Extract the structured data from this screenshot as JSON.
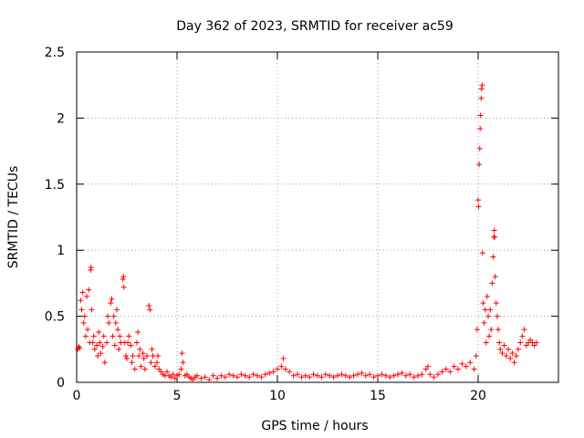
{
  "chart_data": {
    "type": "scatter",
    "title": "Day 362 of 2023, SRMTID for receiver ac59",
    "xlabel": "GPS time / hours",
    "ylabel": "SRMTID / TECUs",
    "xlim": [
      0,
      24
    ],
    "ylim": [
      0,
      2.5
    ],
    "xticks": [
      0,
      5,
      10,
      15,
      20
    ],
    "xtick_labels": [
      "0",
      "5",
      "10",
      "15",
      "20"
    ],
    "yticks": [
      0,
      0.5,
      1,
      1.5,
      2,
      2.5
    ],
    "ytick_labels": [
      "0",
      "0.5",
      "1",
      "1.5",
      "2",
      "2.5"
    ],
    "grid": true,
    "marker": "+",
    "color": "#ff0000",
    "series": [
      {
        "name": "SRMTID",
        "points": [
          [
            0.05,
            0.25
          ],
          [
            0.1,
            0.27
          ],
          [
            0.15,
            0.26
          ],
          [
            0.2,
            0.62
          ],
          [
            0.25,
            0.55
          ],
          [
            0.3,
            0.68
          ],
          [
            0.35,
            0.45
          ],
          [
            0.4,
            0.5
          ],
          [
            0.45,
            0.35
          ],
          [
            0.5,
            0.65
          ],
          [
            0.55,
            0.4
          ],
          [
            0.6,
            0.7
          ],
          [
            0.65,
            0.3
          ],
          [
            0.7,
            0.85
          ],
          [
            0.72,
            0.87
          ],
          [
            0.75,
            0.55
          ],
          [
            0.8,
            0.3
          ],
          [
            0.85,
            0.35
          ],
          [
            0.9,
            0.25
          ],
          [
            1.0,
            0.28
          ],
          [
            1.05,
            0.2
          ],
          [
            1.1,
            0.38
          ],
          [
            1.15,
            0.3
          ],
          [
            1.2,
            0.22
          ],
          [
            1.3,
            0.27
          ],
          [
            1.35,
            0.35
          ],
          [
            1.4,
            0.15
          ],
          [
            1.5,
            0.3
          ],
          [
            1.55,
            0.5
          ],
          [
            1.6,
            0.45
          ],
          [
            1.7,
            0.6
          ],
          [
            1.75,
            0.63
          ],
          [
            1.8,
            0.35
          ],
          [
            1.85,
            0.5
          ],
          [
            1.9,
            0.28
          ],
          [
            1.95,
            0.45
          ],
          [
            2.0,
            0.55
          ],
          [
            2.05,
            0.4
          ],
          [
            2.1,
            0.25
          ],
          [
            2.15,
            0.35
          ],
          [
            2.2,
            0.3
          ],
          [
            2.3,
            0.78
          ],
          [
            2.33,
            0.8
          ],
          [
            2.35,
            0.72
          ],
          [
            2.4,
            0.3
          ],
          [
            2.45,
            0.2
          ],
          [
            2.5,
            0.18
          ],
          [
            2.55,
            0.3
          ],
          [
            2.6,
            0.35
          ],
          [
            2.7,
            0.28
          ],
          [
            2.75,
            0.15
          ],
          [
            2.8,
            0.2
          ],
          [
            2.9,
            0.1
          ],
          [
            3.0,
            0.3
          ],
          [
            3.05,
            0.38
          ],
          [
            3.1,
            0.2
          ],
          [
            3.15,
            0.25
          ],
          [
            3.2,
            0.12
          ],
          [
            3.3,
            0.22
          ],
          [
            3.35,
            0.18
          ],
          [
            3.4,
            0.1
          ],
          [
            3.5,
            0.2
          ],
          [
            3.6,
            0.58
          ],
          [
            3.65,
            0.55
          ],
          [
            3.7,
            0.15
          ],
          [
            3.75,
            0.25
          ],
          [
            3.8,
            0.2
          ],
          [
            3.9,
            0.12
          ],
          [
            4.0,
            0.15
          ],
          [
            4.05,
            0.2
          ],
          [
            4.1,
            0.1
          ],
          [
            4.2,
            0.08
          ],
          [
            4.3,
            0.06
          ],
          [
            4.4,
            0.05
          ],
          [
            4.5,
            0.08
          ],
          [
            4.6,
            0.05
          ],
          [
            4.7,
            0.04
          ],
          [
            4.8,
            0.06
          ],
          [
            4.9,
            0.03
          ],
          [
            5.0,
            0.05
          ],
          [
            5.1,
            0.06
          ],
          [
            5.2,
            0.1
          ],
          [
            5.25,
            0.22
          ],
          [
            5.3,
            0.15
          ],
          [
            5.4,
            0.05
          ],
          [
            5.5,
            0.06
          ],
          [
            5.6,
            0.04
          ],
          [
            5.7,
            0.03
          ],
          [
            5.8,
            0.02
          ],
          [
            5.9,
            0.04
          ],
          [
            6.0,
            0.05
          ],
          [
            6.2,
            0.03
          ],
          [
            6.4,
            0.04
          ],
          [
            6.6,
            0.02
          ],
          [
            6.8,
            0.05
          ],
          [
            7.0,
            0.03
          ],
          [
            7.2,
            0.05
          ],
          [
            7.4,
            0.04
          ],
          [
            7.6,
            0.06
          ],
          [
            7.8,
            0.05
          ],
          [
            8.0,
            0.04
          ],
          [
            8.2,
            0.06
          ],
          [
            8.4,
            0.05
          ],
          [
            8.6,
            0.04
          ],
          [
            8.8,
            0.06
          ],
          [
            9.0,
            0.05
          ],
          [
            9.2,
            0.04
          ],
          [
            9.4,
            0.06
          ],
          [
            9.6,
            0.07
          ],
          [
            9.8,
            0.08
          ],
          [
            10.0,
            0.1
          ],
          [
            10.2,
            0.12
          ],
          [
            10.3,
            0.18
          ],
          [
            10.4,
            0.1
          ],
          [
            10.6,
            0.08
          ],
          [
            10.8,
            0.05
          ],
          [
            11.0,
            0.06
          ],
          [
            11.2,
            0.04
          ],
          [
            11.4,
            0.05
          ],
          [
            11.6,
            0.04
          ],
          [
            11.8,
            0.06
          ],
          [
            12.0,
            0.05
          ],
          [
            12.2,
            0.04
          ],
          [
            12.4,
            0.06
          ],
          [
            12.6,
            0.05
          ],
          [
            12.8,
            0.04
          ],
          [
            13.0,
            0.05
          ],
          [
            13.2,
            0.06
          ],
          [
            13.4,
            0.05
          ],
          [
            13.6,
            0.04
          ],
          [
            13.8,
            0.05
          ],
          [
            14.0,
            0.06
          ],
          [
            14.2,
            0.07
          ],
          [
            14.4,
            0.05
          ],
          [
            14.6,
            0.06
          ],
          [
            14.8,
            0.04
          ],
          [
            15.0,
            0.05
          ],
          [
            15.2,
            0.06
          ],
          [
            15.4,
            0.05
          ],
          [
            15.6,
            0.04
          ],
          [
            15.8,
            0.05
          ],
          [
            16.0,
            0.06
          ],
          [
            16.2,
            0.07
          ],
          [
            16.4,
            0.05
          ],
          [
            16.6,
            0.06
          ],
          [
            16.8,
            0.04
          ],
          [
            17.0,
            0.05
          ],
          [
            17.2,
            0.06
          ],
          [
            17.4,
            0.1
          ],
          [
            17.5,
            0.12
          ],
          [
            17.6,
            0.06
          ],
          [
            17.8,
            0.04
          ],
          [
            18.0,
            0.06
          ],
          [
            18.2,
            0.08
          ],
          [
            18.4,
            0.1
          ],
          [
            18.6,
            0.08
          ],
          [
            18.8,
            0.12
          ],
          [
            19.0,
            0.1
          ],
          [
            19.2,
            0.14
          ],
          [
            19.4,
            0.12
          ],
          [
            19.6,
            0.15
          ],
          [
            19.8,
            0.1
          ],
          [
            19.9,
            0.2
          ],
          [
            19.95,
            0.4
          ],
          [
            20.0,
            1.38
          ],
          [
            20.02,
            1.33
          ],
          [
            20.05,
            1.65
          ],
          [
            20.08,
            1.77
          ],
          [
            20.1,
            1.92
          ],
          [
            20.12,
            2.02
          ],
          [
            20.15,
            2.15
          ],
          [
            20.17,
            2.22
          ],
          [
            20.2,
            2.25
          ],
          [
            20.22,
            0.98
          ],
          [
            20.25,
            0.6
          ],
          [
            20.3,
            0.45
          ],
          [
            20.35,
            0.55
          ],
          [
            20.4,
            0.3
          ],
          [
            20.45,
            0.65
          ],
          [
            20.5,
            0.5
          ],
          [
            20.55,
            0.35
          ],
          [
            20.6,
            0.55
          ],
          [
            20.65,
            0.4
          ],
          [
            20.7,
            0.75
          ],
          [
            20.75,
            0.95
          ],
          [
            20.78,
            1.1
          ],
          [
            20.8,
            1.15
          ],
          [
            20.82,
            1.1
          ],
          [
            20.85,
            0.8
          ],
          [
            20.9,
            0.6
          ],
          [
            20.95,
            0.5
          ],
          [
            21.0,
            0.4
          ],
          [
            21.05,
            0.3
          ],
          [
            21.1,
            0.25
          ],
          [
            21.2,
            0.22
          ],
          [
            21.3,
            0.28
          ],
          [
            21.4,
            0.2
          ],
          [
            21.5,
            0.25
          ],
          [
            21.6,
            0.18
          ],
          [
            21.7,
            0.22
          ],
          [
            21.8,
            0.15
          ],
          [
            21.9,
            0.2
          ],
          [
            22.0,
            0.25
          ],
          [
            22.1,
            0.3
          ],
          [
            22.2,
            0.35
          ],
          [
            22.3,
            0.4
          ],
          [
            22.4,
            0.28
          ],
          [
            22.5,
            0.3
          ],
          [
            22.6,
            0.32
          ],
          [
            22.7,
            0.3
          ],
          [
            22.8,
            0.28
          ],
          [
            22.9,
            0.3
          ]
        ]
      }
    ]
  }
}
